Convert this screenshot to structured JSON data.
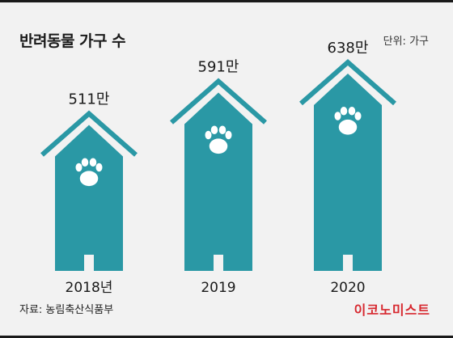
{
  "title": "반려동물 가구 수",
  "unit": "단위: 가구",
  "source": "자료: 농림축산식품부",
  "brand": "이코노미스트",
  "colors": {
    "house_fill": "#2a98a5",
    "roof_outline": "#2a98a5",
    "paw": "#ffffff",
    "background": "#f2f2f2",
    "brand": "#d7282f"
  },
  "icons": {
    "bar_mark": "house-icon",
    "badge": "paw-icon"
  },
  "chart_data": {
    "type": "bar",
    "categories": [
      "2018년",
      "2019",
      "2020"
    ],
    "values": [
      511,
      591,
      638
    ],
    "value_labels": [
      "511만",
      "591만",
      "638만"
    ],
    "title": "반려동물 가구 수",
    "xlabel": "",
    "ylabel": "",
    "unit": "단위: 가구",
    "grid": false,
    "legend": "none"
  }
}
